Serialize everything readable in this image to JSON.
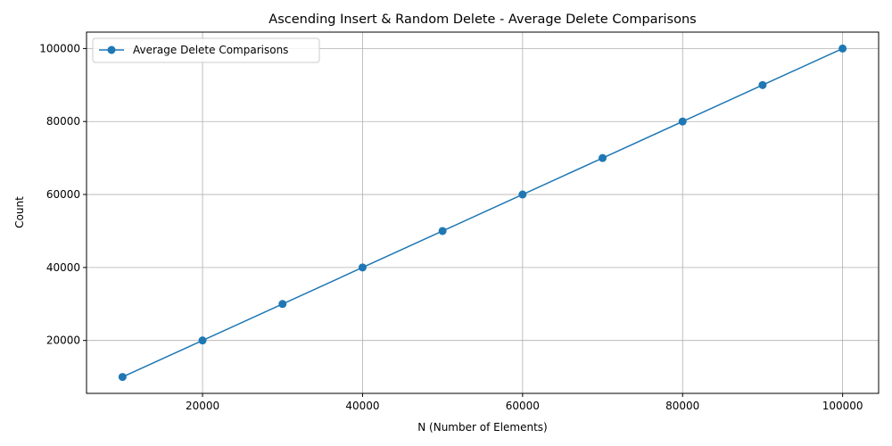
{
  "chart_data": {
    "type": "line",
    "title": "Ascending Insert & Random Delete - Average Delete Comparisons",
    "xlabel": "N (Number of Elements)",
    "ylabel": "Count",
    "x": [
      10000,
      20000,
      30000,
      40000,
      50000,
      60000,
      70000,
      80000,
      90000,
      100000
    ],
    "series": [
      {
        "name": "Average Delete Comparisons",
        "values": [
          10000,
          20000,
          30000,
          40000,
          50000,
          60000,
          70000,
          80000,
          90000,
          100000
        ],
        "color": "#1f77b4",
        "marker": "circle"
      }
    ],
    "xlim": [
      5500,
      104500
    ],
    "ylim": [
      5500,
      104500
    ],
    "xticks": [
      "20000",
      "40000",
      "60000",
      "80000",
      "100000"
    ],
    "yticks": [
      "20000",
      "40000",
      "60000",
      "80000",
      "100000"
    ],
    "grid": true,
    "legend_position": "top-left"
  }
}
